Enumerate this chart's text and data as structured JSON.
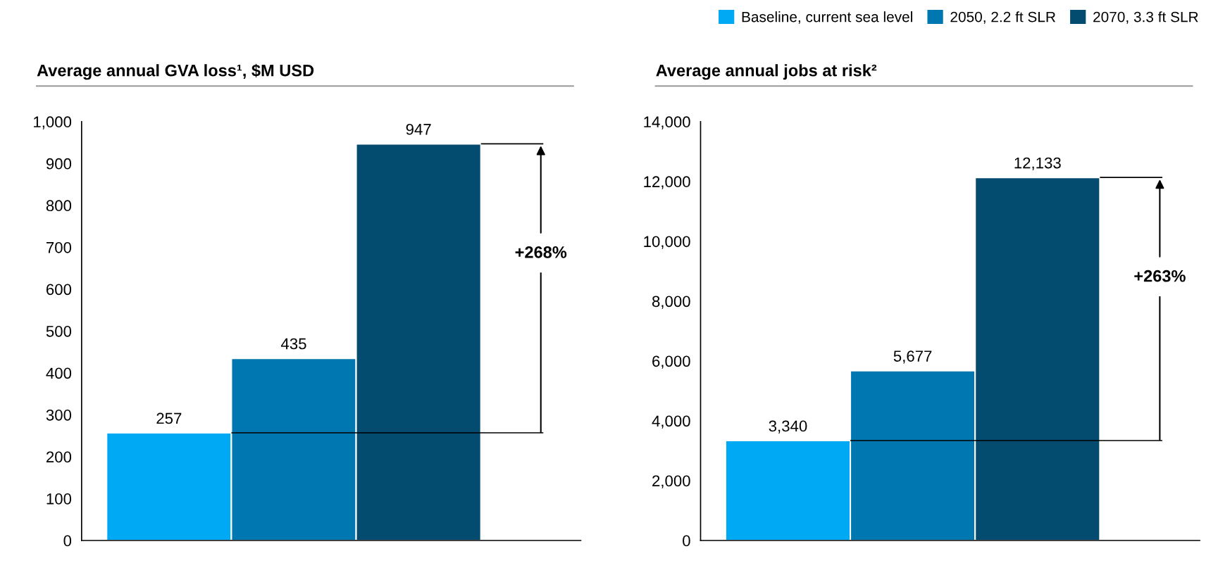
{
  "chart_data": [
    {
      "type": "bar",
      "title": "Average annual GVA loss¹, $M USD",
      "categories": [
        null
      ],
      "series": [
        {
          "name": "Baseline, current sea level",
          "color": "#00a9f4",
          "values": [
            257
          ]
        },
        {
          "name": "2050, 2.2 ft SLR",
          "color": "#0077b0",
          "values": [
            435
          ]
        },
        {
          "name": "2070, 3.3 ft SLR",
          "color": "#034b6f",
          "values": [
            947
          ]
        }
      ],
      "ylim": [
        0,
        1000
      ],
      "yticks": [
        0,
        100,
        200,
        300,
        400,
        500,
        600,
        700,
        800,
        900,
        {
          "value": 1000,
          "label": "1,000"
        }
      ],
      "data_labels": true,
      "grid": false,
      "legend": "top right",
      "ref_lines": [
        {
          "axis": "y",
          "value": 257,
          "color": "#000000"
        },
        {
          "axis": "y",
          "value": 947,
          "color": "#000000"
        }
      ],
      "annotations": [
        "+268%"
      ]
    },
    {
      "type": "bar",
      "title": "Average annual jobs at risk²",
      "categories": [
        null
      ],
      "series": [
        {
          "color": "#00a9f4",
          "values": [
            3340
          ],
          "value_labels": [
            "3,340"
          ]
        },
        {
          "color": "#0077b0",
          "values": [
            5677
          ],
          "value_labels": [
            "5,677"
          ]
        },
        {
          "color": "#034b6f",
          "values": [
            12133
          ],
          "value_labels": [
            "12,133"
          ]
        }
      ],
      "ylim": [
        0,
        14000
      ],
      "yticks": [
        0,
        {
          "value": 2000,
          "label": "2,000"
        },
        {
          "value": 4000,
          "label": "4,000"
        },
        {
          "value": 6000,
          "label": "6,000"
        },
        {
          "value": 8000,
          "label": "8,000"
        },
        {
          "value": 10000,
          "label": "10,000"
        },
        {
          "value": 12000,
          "label": "12,000"
        },
        {
          "value": 14000,
          "label": "14,000"
        }
      ],
      "grid": false,
      "ref_lines": [
        {
          "axis": "y",
          "value": 3340,
          "color": "#000000"
        },
        {
          "axis": "y",
          "value": 12133,
          "color": "#000000"
        }
      ],
      "annotations": [
        "+263%"
      ]
    }
  ]
}
